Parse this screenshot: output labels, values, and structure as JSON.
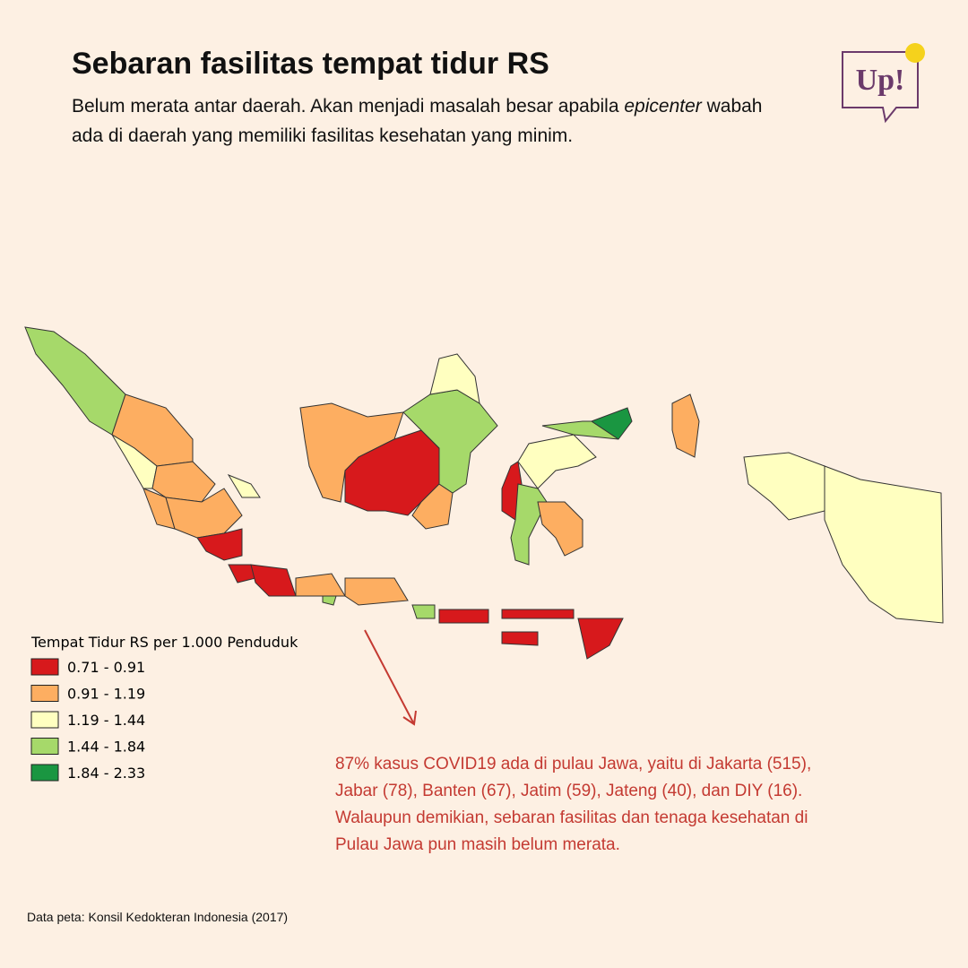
{
  "header": {
    "title": "Sebaran fasilitas tempat tidur RS",
    "subtitle": [
      "Belum merata antar daerah. Akan menjadi masalah besar apabila ",
      "epicenter",
      " wabah ada di daerah yang memiliki fasilitas kesehatan yang minim."
    ]
  },
  "logo": {
    "text": "Up!"
  },
  "legend": {
    "title": "Tempat Tidur RS per 1.000 Penduduk",
    "items": [
      {
        "label": "0.71 - 0.91",
        "color": "#d7191c"
      },
      {
        "label": "0.91 - 1.19",
        "color": "#fdae61"
      },
      {
        "label": "1.19 - 1.44",
        "color": "#ffffc0"
      },
      {
        "label": "1.44 - 1.84",
        "color": "#a6d96a"
      },
      {
        "label": "1.84 - 2.33",
        "color": "#1a9641"
      }
    ]
  },
  "annotation": "87% kasus COVID19 ada di pulau Jawa, yaitu di Jakarta (515), Jabar (78), Banten (67), Jatim (59), Jateng (40), dan DIY (16). Walaupun demikian, sebaran fasilitas dan tenaga kesehatan di Pulau Jawa pun masih belum merata.",
  "source": "Data peta: Konsil Kedokteran Indonesia (2017)"
}
